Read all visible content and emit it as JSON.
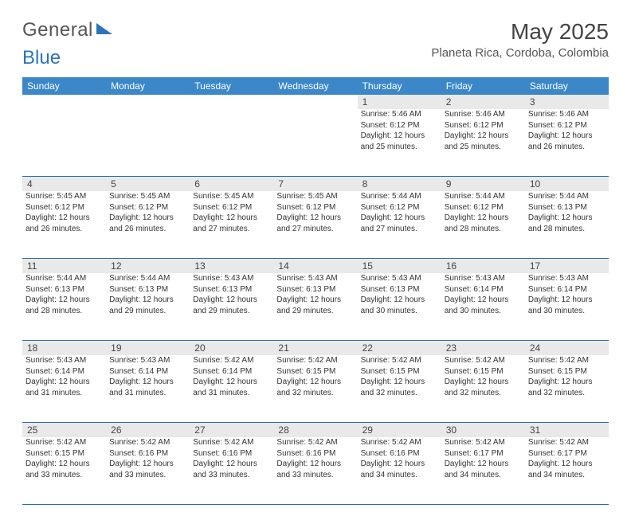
{
  "logo": {
    "word1": "General",
    "word2": "Blue"
  },
  "title": "May 2025",
  "location": "Planeta Rica, Cordoba, Colombia",
  "colors": {
    "header_bg": "#3b87c8",
    "header_text": "#ffffff",
    "daynum_bg": "#e9e9e9",
    "rule": "#2f6ea8",
    "logo_gray": "#555555",
    "logo_blue": "#2b74b8"
  },
  "weekdays": [
    "Sunday",
    "Monday",
    "Tuesday",
    "Wednesday",
    "Thursday",
    "Friday",
    "Saturday"
  ],
  "weeks": [
    [
      {
        "blank": true
      },
      {
        "blank": true
      },
      {
        "blank": true
      },
      {
        "blank": true
      },
      {
        "n": "1",
        "sr": "Sunrise: 5:46 AM",
        "ss": "Sunset: 6:12 PM",
        "dl1": "Daylight: 12 hours",
        "dl2": "and 25 minutes."
      },
      {
        "n": "2",
        "sr": "Sunrise: 5:46 AM",
        "ss": "Sunset: 6:12 PM",
        "dl1": "Daylight: 12 hours",
        "dl2": "and 25 minutes."
      },
      {
        "n": "3",
        "sr": "Sunrise: 5:46 AM",
        "ss": "Sunset: 6:12 PM",
        "dl1": "Daylight: 12 hours",
        "dl2": "and 26 minutes."
      }
    ],
    [
      {
        "n": "4",
        "sr": "Sunrise: 5:45 AM",
        "ss": "Sunset: 6:12 PM",
        "dl1": "Daylight: 12 hours",
        "dl2": "and 26 minutes."
      },
      {
        "n": "5",
        "sr": "Sunrise: 5:45 AM",
        "ss": "Sunset: 6:12 PM",
        "dl1": "Daylight: 12 hours",
        "dl2": "and 26 minutes."
      },
      {
        "n": "6",
        "sr": "Sunrise: 5:45 AM",
        "ss": "Sunset: 6:12 PM",
        "dl1": "Daylight: 12 hours",
        "dl2": "and 27 minutes."
      },
      {
        "n": "7",
        "sr": "Sunrise: 5:45 AM",
        "ss": "Sunset: 6:12 PM",
        "dl1": "Daylight: 12 hours",
        "dl2": "and 27 minutes."
      },
      {
        "n": "8",
        "sr": "Sunrise: 5:44 AM",
        "ss": "Sunset: 6:12 PM",
        "dl1": "Daylight: 12 hours",
        "dl2": "and 27 minutes."
      },
      {
        "n": "9",
        "sr": "Sunrise: 5:44 AM",
        "ss": "Sunset: 6:12 PM",
        "dl1": "Daylight: 12 hours",
        "dl2": "and 28 minutes."
      },
      {
        "n": "10",
        "sr": "Sunrise: 5:44 AM",
        "ss": "Sunset: 6:13 PM",
        "dl1": "Daylight: 12 hours",
        "dl2": "and 28 minutes."
      }
    ],
    [
      {
        "n": "11",
        "sr": "Sunrise: 5:44 AM",
        "ss": "Sunset: 6:13 PM",
        "dl1": "Daylight: 12 hours",
        "dl2": "and 28 minutes."
      },
      {
        "n": "12",
        "sr": "Sunrise: 5:44 AM",
        "ss": "Sunset: 6:13 PM",
        "dl1": "Daylight: 12 hours",
        "dl2": "and 29 minutes."
      },
      {
        "n": "13",
        "sr": "Sunrise: 5:43 AM",
        "ss": "Sunset: 6:13 PM",
        "dl1": "Daylight: 12 hours",
        "dl2": "and 29 minutes."
      },
      {
        "n": "14",
        "sr": "Sunrise: 5:43 AM",
        "ss": "Sunset: 6:13 PM",
        "dl1": "Daylight: 12 hours",
        "dl2": "and 29 minutes."
      },
      {
        "n": "15",
        "sr": "Sunrise: 5:43 AM",
        "ss": "Sunset: 6:13 PM",
        "dl1": "Daylight: 12 hours",
        "dl2": "and 30 minutes."
      },
      {
        "n": "16",
        "sr": "Sunrise: 5:43 AM",
        "ss": "Sunset: 6:14 PM",
        "dl1": "Daylight: 12 hours",
        "dl2": "and 30 minutes."
      },
      {
        "n": "17",
        "sr": "Sunrise: 5:43 AM",
        "ss": "Sunset: 6:14 PM",
        "dl1": "Daylight: 12 hours",
        "dl2": "and 30 minutes."
      }
    ],
    [
      {
        "n": "18",
        "sr": "Sunrise: 5:43 AM",
        "ss": "Sunset: 6:14 PM",
        "dl1": "Daylight: 12 hours",
        "dl2": "and 31 minutes."
      },
      {
        "n": "19",
        "sr": "Sunrise: 5:43 AM",
        "ss": "Sunset: 6:14 PM",
        "dl1": "Daylight: 12 hours",
        "dl2": "and 31 minutes."
      },
      {
        "n": "20",
        "sr": "Sunrise: 5:42 AM",
        "ss": "Sunset: 6:14 PM",
        "dl1": "Daylight: 12 hours",
        "dl2": "and 31 minutes."
      },
      {
        "n": "21",
        "sr": "Sunrise: 5:42 AM",
        "ss": "Sunset: 6:15 PM",
        "dl1": "Daylight: 12 hours",
        "dl2": "and 32 minutes."
      },
      {
        "n": "22",
        "sr": "Sunrise: 5:42 AM",
        "ss": "Sunset: 6:15 PM",
        "dl1": "Daylight: 12 hours",
        "dl2": "and 32 minutes."
      },
      {
        "n": "23",
        "sr": "Sunrise: 5:42 AM",
        "ss": "Sunset: 6:15 PM",
        "dl1": "Daylight: 12 hours",
        "dl2": "and 32 minutes."
      },
      {
        "n": "24",
        "sr": "Sunrise: 5:42 AM",
        "ss": "Sunset: 6:15 PM",
        "dl1": "Daylight: 12 hours",
        "dl2": "and 32 minutes."
      }
    ],
    [
      {
        "n": "25",
        "sr": "Sunrise: 5:42 AM",
        "ss": "Sunset: 6:15 PM",
        "dl1": "Daylight: 12 hours",
        "dl2": "and 33 minutes."
      },
      {
        "n": "26",
        "sr": "Sunrise: 5:42 AM",
        "ss": "Sunset: 6:16 PM",
        "dl1": "Daylight: 12 hours",
        "dl2": "and 33 minutes."
      },
      {
        "n": "27",
        "sr": "Sunrise: 5:42 AM",
        "ss": "Sunset: 6:16 PM",
        "dl1": "Daylight: 12 hours",
        "dl2": "and 33 minutes."
      },
      {
        "n": "28",
        "sr": "Sunrise: 5:42 AM",
        "ss": "Sunset: 6:16 PM",
        "dl1": "Daylight: 12 hours",
        "dl2": "and 33 minutes."
      },
      {
        "n": "29",
        "sr": "Sunrise: 5:42 AM",
        "ss": "Sunset: 6:16 PM",
        "dl1": "Daylight: 12 hours",
        "dl2": "and 34 minutes."
      },
      {
        "n": "30",
        "sr": "Sunrise: 5:42 AM",
        "ss": "Sunset: 6:17 PM",
        "dl1": "Daylight: 12 hours",
        "dl2": "and 34 minutes."
      },
      {
        "n": "31",
        "sr": "Sunrise: 5:42 AM",
        "ss": "Sunset: 6:17 PM",
        "dl1": "Daylight: 12 hours",
        "dl2": "and 34 minutes."
      }
    ]
  ]
}
